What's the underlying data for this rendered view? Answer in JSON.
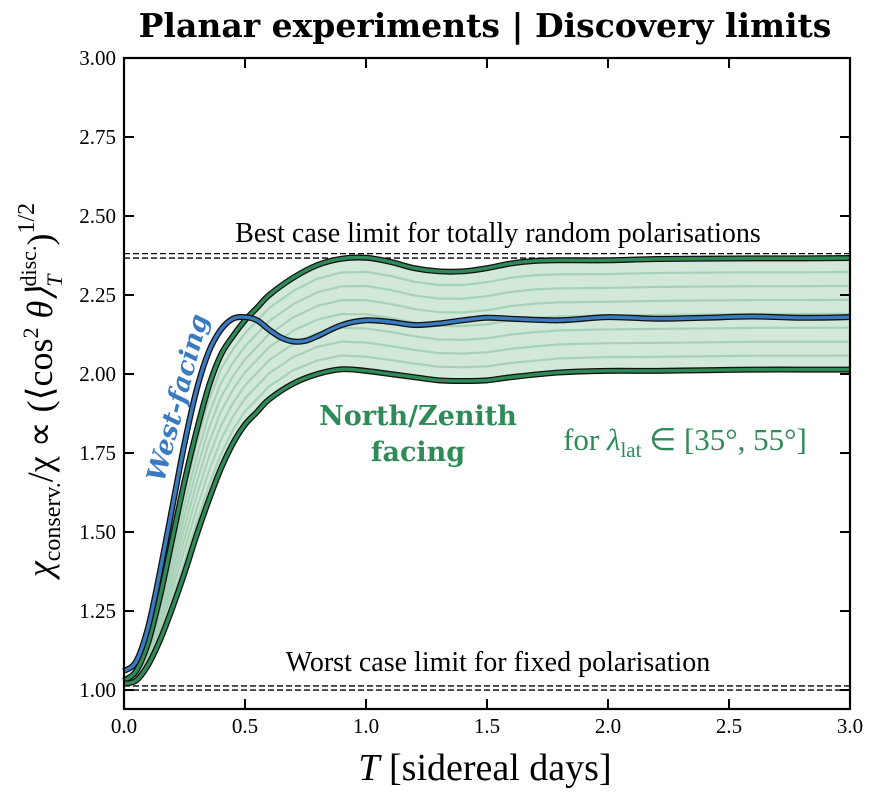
{
  "chart_data": {
    "type": "line",
    "title": "Planar experiments | Discovery limits",
    "xlabel": "T [sidereal days]",
    "ylabel": "χconserv./χ ∝ (⟨cos² θ⟩T disc.)1/2",
    "xlim": [
      0,
      3
    ],
    "ylim": [
      0.94,
      3.0
    ],
    "x_ticks": [
      "0.0",
      "0.5",
      "1.0",
      "1.5",
      "2.0",
      "2.5",
      "3.0"
    ],
    "y_ticks": [
      "1.00",
      "1.25",
      "1.50",
      "1.75",
      "2.00",
      "2.25",
      "2.50",
      "2.75",
      "3.00"
    ],
    "grid": false,
    "reference_lines": [
      {
        "label": "Best case limit for totally random polarisations",
        "y": [
          2.367,
          2.381
        ]
      },
      {
        "label": "Worst case limit for fixed polarisation",
        "y": [
          1.0,
          1.013
        ]
      }
    ],
    "series": [
      {
        "name": "West-facing",
        "color": "#3a7bbf",
        "x": [
          0.0,
          0.05,
          0.1,
          0.15,
          0.2,
          0.25,
          0.3,
          0.35,
          0.4,
          0.45,
          0.5,
          0.55,
          0.6,
          0.65,
          0.7,
          0.75,
          0.8,
          0.9,
          1.0,
          1.1,
          1.2,
          1.3,
          1.4,
          1.5,
          1.6,
          1.8,
          2.0,
          2.2,
          2.4,
          2.6,
          2.8,
          3.0
        ],
        "y": [
          1.06,
          1.09,
          1.2,
          1.38,
          1.58,
          1.78,
          1.95,
          2.07,
          2.14,
          2.175,
          2.18,
          2.17,
          2.14,
          2.115,
          2.103,
          2.105,
          2.12,
          2.155,
          2.17,
          2.165,
          2.155,
          2.16,
          2.17,
          2.178,
          2.175,
          2.17,
          2.18,
          2.175,
          2.178,
          2.182,
          2.178,
          2.18
        ]
      },
      {
        "name": "North/Zenith facing",
        "role": "upper",
        "color": "#2e8b57",
        "x": [
          0.0,
          0.05,
          0.1,
          0.15,
          0.2,
          0.25,
          0.3,
          0.35,
          0.4,
          0.45,
          0.5,
          0.55,
          0.6,
          0.7,
          0.8,
          0.9,
          1.0,
          1.1,
          1.2,
          1.3,
          1.4,
          1.5,
          1.6,
          1.7,
          1.8,
          2.0,
          2.2,
          2.4,
          2.6,
          2.8,
          3.0
        ],
        "y": [
          1.03,
          1.06,
          1.15,
          1.3,
          1.48,
          1.66,
          1.82,
          1.96,
          2.06,
          2.12,
          2.17,
          2.21,
          2.25,
          2.305,
          2.345,
          2.365,
          2.368,
          2.355,
          2.335,
          2.325,
          2.325,
          2.335,
          2.35,
          2.358,
          2.36,
          2.36,
          2.364,
          2.365,
          2.366,
          2.366,
          2.367
        ]
      },
      {
        "name": "North/Zenith facing",
        "role": "lower",
        "color": "#2e8b57",
        "x": [
          0.0,
          0.05,
          0.1,
          0.15,
          0.2,
          0.25,
          0.3,
          0.35,
          0.4,
          0.45,
          0.5,
          0.55,
          0.6,
          0.7,
          0.8,
          0.9,
          1.0,
          1.1,
          1.2,
          1.3,
          1.4,
          1.5,
          1.6,
          1.8,
          2.0,
          2.2,
          2.4,
          2.6,
          2.8,
          3.0
        ],
        "y": [
          1.02,
          1.03,
          1.08,
          1.16,
          1.26,
          1.37,
          1.49,
          1.6,
          1.7,
          1.78,
          1.84,
          1.88,
          1.92,
          1.97,
          2.0,
          2.015,
          2.01,
          2.0,
          1.99,
          1.98,
          1.978,
          1.98,
          1.99,
          2.005,
          2.01,
          2.01,
          2.012,
          2.014,
          2.014,
          2.014
        ]
      }
    ],
    "band_label": "for λlat ∈ [35°, 55°]",
    "band_fill_color": "#d2e8d9",
    "band_line_color": "#a9d1b8",
    "band_inner_lines": 7
  },
  "labels": {
    "title": "Planar experiments | Discovery limits",
    "best_case": "Best case limit for totally random polarisations",
    "worst_case": "Worst case limit for fixed polarisation",
    "west_facing": "West-facing",
    "north_line1": "North/Zenith",
    "north_line2": "facing",
    "lambda_for": "for ",
    "lambda_symbol": "λ",
    "lambda_sub": "lat",
    "lambda_range": " ∈ [35°, 55°]",
    "xlabel_T": "T",
    "xlabel_rest": " [sidereal days]",
    "ylabel_chi1": "χ",
    "ylabel_sub": "conserv.",
    "ylabel_mid": "/χ ∝ (⟨cos",
    "ylabel_sq": "2",
    "ylabel_theta": " θ⟩",
    "ylabel_T": "T",
    "ylabel_disc": "disc.",
    "ylabel_close": ")",
    "ylabel_pow": "1/2"
  }
}
